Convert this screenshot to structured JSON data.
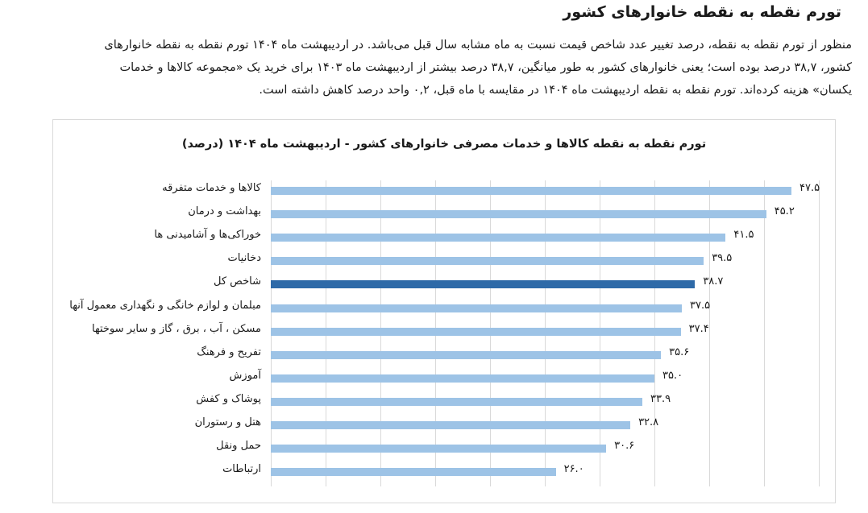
{
  "article": {
    "heading": "تورم نقطه به نقطه خانوارهای کشور",
    "paragraph_lines": [
      "منظور از تورم نقطه به نقطه، درصد تغییر عدد شاخص قیمت نسبت به ماه مشابه سال قبل می‌باشد. در اردیبهشت ماه ۱۴۰۴ تورم نقطه به نقطه خانوارهای",
      "کشور، ۳۸,۷ درصد بوده است؛ یعنی خانوارهای کشور به طور میانگین، ۳۸,۷ درصد بیشتر از اردیبهشت ماه ۱۴۰۳ برای خرید یک «مجموعه کالاها و خدمات",
      "یکسان» هزینه کرده‌اند. تورم نقطه به نقطه اردیبهشت ماه ۱۴۰۴ در مقایسه با ماه قبل، ۰,۲ واحد درصد کاهش داشته است."
    ]
  },
  "chart_data": {
    "type": "bar",
    "orientation": "horizontal",
    "title": "تورم نقطه به نقطه کالاها و خدمات مصرفی خانوارهای کشور - اردیبهشت ماه ۱۴۰۴ (درصد)",
    "xlabel": "",
    "ylabel": "",
    "xlim": [
      0,
      50
    ],
    "grid": true,
    "grid_step": 5,
    "legend": "none",
    "colors": {
      "default": "#9dc3e6",
      "highlight": "#2e6aa8"
    },
    "categories": [
      "کالاها و خدمات متفرقه",
      "بهداشت و درمان",
      "خوراکی‌ها و آشامیدنی ها",
      "دخانیات",
      "شاخص کل",
      "مبلمان و لوازم خانگی و نگهداری معمول آنها",
      "مسکن ، آب ، برق ، گاز و سایر سوختها",
      "تفریح و فرهنگ",
      "آموزش",
      "پوشاک و کفش",
      "هتل و رستوران",
      "حمل ونقل",
      "ارتباطات"
    ],
    "values": [
      47.5,
      45.2,
      41.5,
      39.5,
      38.7,
      37.5,
      37.4,
      35.6,
      35.0,
      33.9,
      32.8,
      30.6,
      26.0
    ],
    "value_labels": [
      "۴۷.۵",
      "۴۵.۲",
      "۴۱.۵",
      "۳۹.۵",
      "۳۸.۷",
      "۳۷.۵",
      "۳۷.۴",
      "۳۵.۶",
      "۳۵.۰",
      "۳۳.۹",
      "۳۲.۸",
      "۳۰.۶",
      "۲۶.۰"
    ],
    "highlighted_category": "شاخص کل"
  }
}
